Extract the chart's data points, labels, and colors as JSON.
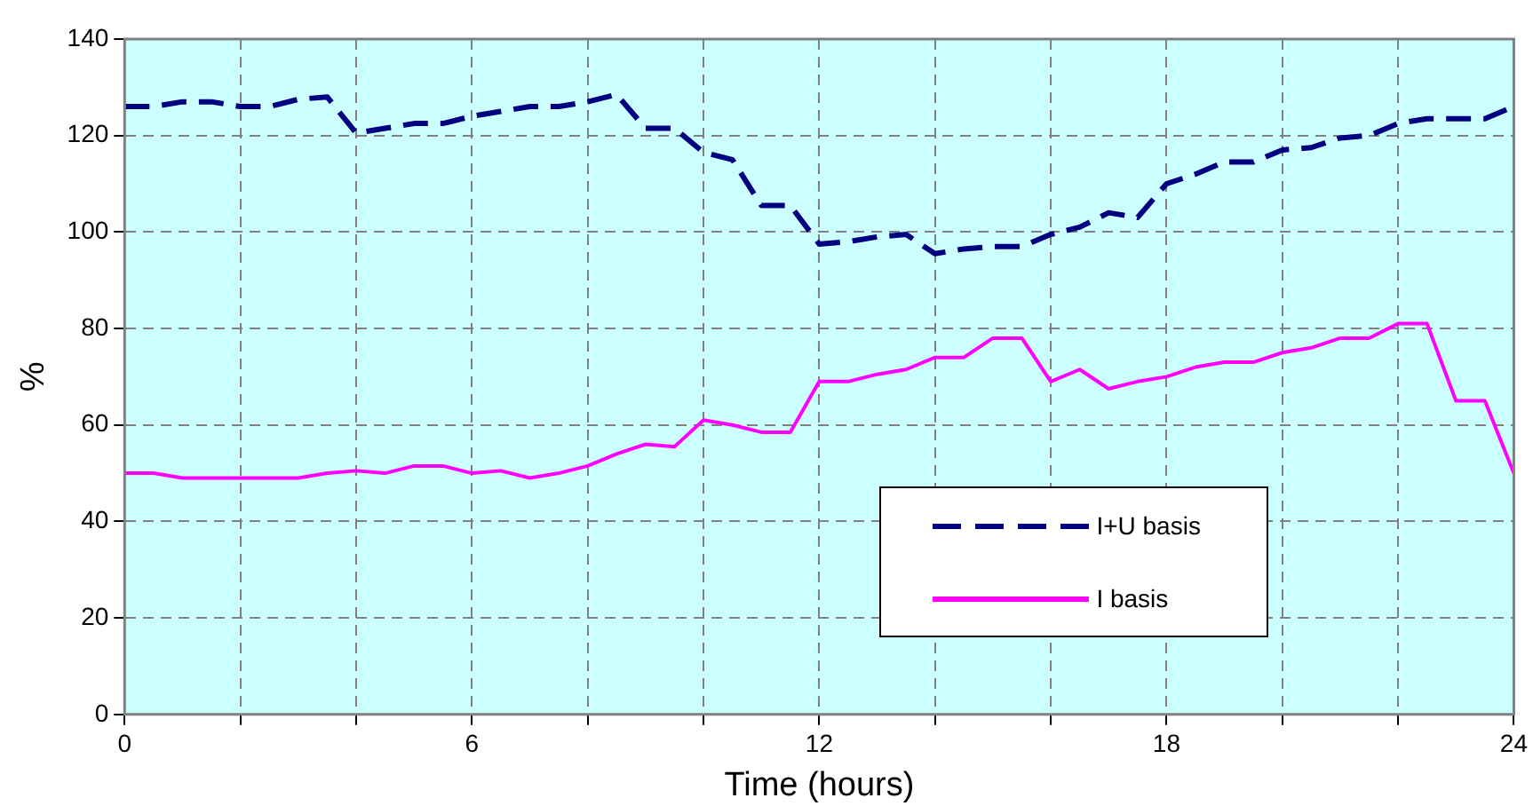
{
  "chart_data": {
    "type": "line",
    "xlabel": "Time (hours)",
    "ylabel": "%",
    "x": [
      0,
      0.5,
      1,
      1.5,
      2,
      2.5,
      3,
      3.5,
      4,
      4.5,
      5,
      5.5,
      6,
      6.5,
      7,
      7.5,
      8,
      8.5,
      9,
      9.5,
      10,
      10.5,
      11,
      11.5,
      12,
      12.5,
      13,
      13.5,
      14,
      14.5,
      15,
      15.5,
      16,
      16.5,
      17,
      17.5,
      18,
      18.5,
      19,
      19.5,
      20,
      20.5,
      21,
      21.5,
      22,
      22.5,
      23,
      23.5,
      24
    ],
    "series": [
      {
        "name": "I+U basis",
        "color": "#000080",
        "line_style": "dashed",
        "values": [
          126,
          126,
          127,
          127,
          126,
          126,
          127.5,
          128,
          120.5,
          121.5,
          122.5,
          122.5,
          124,
          125,
          126,
          126,
          127,
          128.5,
          121.5,
          121.5,
          116.5,
          115,
          105.5,
          105.5,
          97.5,
          98,
          99,
          99.5,
          95.5,
          96.5,
          97,
          97,
          99.5,
          101,
          104,
          103,
          110,
          112,
          114.5,
          114.5,
          117,
          117.5,
          119.5,
          120,
          122.5,
          123.5,
          123.5,
          123.5,
          126
        ]
      },
      {
        "name": "I basis",
        "color": "#ff00ff",
        "line_style": "solid",
        "values": [
          50,
          50,
          49,
          49,
          49,
          49,
          49,
          50,
          50.5,
          50,
          51.5,
          51.5,
          50,
          50.5,
          49,
          50,
          51.5,
          54,
          56,
          55.5,
          61,
          60,
          58.5,
          58.5,
          69,
          69,
          70.5,
          71.5,
          74,
          74,
          78,
          78,
          69,
          71.5,
          67.5,
          69,
          70,
          72,
          73,
          73,
          75,
          76,
          78,
          78,
          81,
          81,
          65,
          65,
          50
        ]
      }
    ],
    "xlim": [
      0,
      24
    ],
    "xticks": [
      0,
      {
        "value": 2,
        "label": null
      },
      {
        "value": 4,
        "label": null
      },
      6,
      {
        "value": 8,
        "label": null
      },
      {
        "value": 10,
        "label": null
      },
      12,
      {
        "value": 14,
        "label": null
      },
      {
        "value": 16,
        "label": null
      },
      18,
      {
        "value": 20,
        "label": null
      },
      {
        "value": 22,
        "label": null
      },
      24
    ],
    "ylim": [
      0,
      140
    ],
    "yticks": [
      0,
      20,
      40,
      60,
      80,
      100,
      120,
      140
    ],
    "grid": true,
    "legend": "bottom right",
    "marker": "none"
  }
}
